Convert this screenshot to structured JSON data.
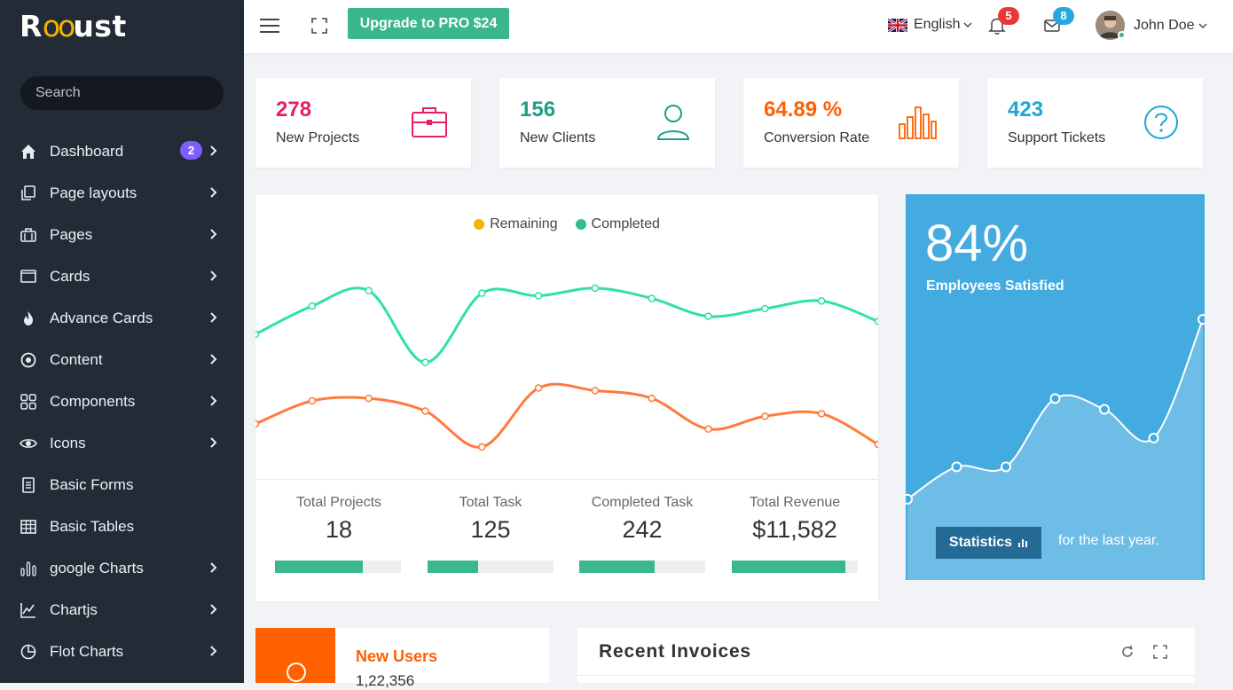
{
  "brand": {
    "logo_pre": "R",
    "logo_oo": "oo",
    "logo_post": "ust"
  },
  "search": {
    "placeholder": "Search"
  },
  "sidebar": {
    "items": [
      {
        "label": "Dashboard",
        "badge": "2"
      },
      {
        "label": "Page layouts"
      },
      {
        "label": "Pages"
      },
      {
        "label": "Cards"
      },
      {
        "label": "Advance Cards"
      },
      {
        "label": "Content"
      },
      {
        "label": "Components"
      },
      {
        "label": "Icons"
      },
      {
        "label": "Basic Forms"
      },
      {
        "label": "Basic Tables"
      },
      {
        "label": "google Charts"
      },
      {
        "label": "Chartjs"
      },
      {
        "label": "Flot Charts"
      }
    ]
  },
  "topbar": {
    "upgrade_label": "Upgrade to PRO $24",
    "language": "English",
    "notifications_count": "5",
    "messages_count": "8",
    "user_name": "John Doe"
  },
  "stats": [
    {
      "value": "278",
      "label": "New Projects",
      "color": "#e91e63",
      "icon": "briefcase-icon"
    },
    {
      "value": "156",
      "label": "New Clients",
      "color": "#1e9e84",
      "icon": "user-icon"
    },
    {
      "value": "64.89 %",
      "label": "Conversion Rate",
      "color": "#ff6000",
      "icon": "bar-chart-icon"
    },
    {
      "value": "423",
      "label": "Support Tickets",
      "color": "#1ba7d6",
      "icon": "question-icon"
    }
  ],
  "chart_data": {
    "type": "line",
    "series": [
      {
        "name": "Remaining",
        "color": "#f4b400",
        "line_color": "#2fe0a8",
        "values": [
          5.3,
          6.4,
          7.0,
          4.2,
          6.9,
          6.8,
          7.1,
          6.7,
          6.0,
          6.3,
          6.6,
          5.8
        ]
      },
      {
        "name": "Completed",
        "color": "#2fbf8f",
        "line_color": "#ff7a3d",
        "values": [
          1.8,
          2.7,
          2.8,
          2.3,
          0.9,
          3.2,
          3.1,
          2.8,
          1.6,
          2.1,
          2.2,
          1.0
        ]
      }
    ],
    "ylim": [
      0,
      9
    ]
  },
  "kpis": [
    {
      "label": "Total Projects",
      "value": "18",
      "progress": 0.7
    },
    {
      "label": "Total Task",
      "value": "125",
      "progress": 0.4
    },
    {
      "label": "Completed Task",
      "value": "242",
      "progress": 0.6
    },
    {
      "label": "Total Revenue",
      "value": "$11,582",
      "progress": 0.9
    }
  ],
  "satisfaction": {
    "value": "84%",
    "label": "Employees Satisfied",
    "button_label": "Statistics",
    "footer": "for the last year.",
    "trend": [
      2.0,
      2.9,
      2.9,
      4.8,
      4.5,
      3.7,
      7.0
    ],
    "ylim": [
      0,
      9
    ]
  },
  "new_users": {
    "title": "New Users",
    "value": "1,22,356"
  },
  "invoices": {
    "title": "Recent Invoices"
  }
}
